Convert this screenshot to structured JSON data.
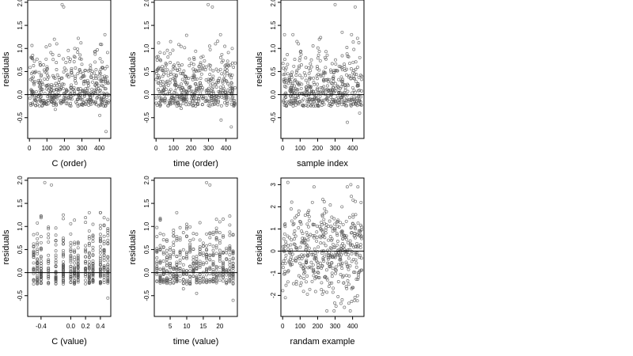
{
  "chart_data": [
    {
      "type": "scatter",
      "id": "c-order",
      "xlabel": "C (order)",
      "ylabel": "residuals",
      "xlim": [
        -10,
        465
      ],
      "ylim": [
        -0.95,
        2.05
      ],
      "xticks": [
        0,
        100,
        200,
        300,
        400
      ],
      "xtick_labels": [
        "0",
        "100",
        "200",
        "300",
        "400"
      ],
      "yticks": [
        -0.5,
        0.0,
        0.5,
        1.0,
        1.5,
        2.0
      ],
      "ytick_labels": [
        "-0.5",
        "0.0",
        "0.5",
        "1.0",
        "1.5",
        "2.0"
      ],
      "hline": 0,
      "n_points": 460,
      "x": [
        22,
        63,
        101,
        148,
        171,
        187,
        196,
        222,
        255,
        279,
        318,
        355,
        402,
        438
      ],
      "y": [
        0.38,
        -0.15,
        0.55,
        -0.32,
        0.22,
        1.95,
        1.9,
        0.8,
        0.15,
        1.22,
        -0.2,
        0.45,
        -0.45,
        -0.8
      ]
    },
    {
      "type": "scatter",
      "id": "time-order",
      "xlabel": "time (order)",
      "ylabel": "residuals",
      "xlim": [
        -10,
        465
      ],
      "ylim": [
        -0.95,
        2.05
      ],
      "xticks": [
        0,
        100,
        200,
        300,
        400
      ],
      "xtick_labels": [
        "0",
        "100",
        "200",
        "300",
        "400"
      ],
      "yticks": [
        -0.5,
        0.0,
        0.5,
        1.0,
        1.5,
        2.0
      ],
      "ytick_labels": [
        "-0.5",
        "0.0",
        "0.5",
        "1.0",
        "1.5",
        "2.0"
      ],
      "hline": 0,
      "n_points": 460,
      "x": [
        15,
        70,
        98,
        144,
        190,
        222,
        268,
        298,
        322,
        340,
        372,
        401,
        430
      ],
      "y": [
        1.12,
        0.2,
        0.35,
        -0.3,
        0.1,
        -0.2,
        0.55,
        1.95,
        1.9,
        1.1,
        -0.55,
        0.3,
        -0.7
      ]
    },
    {
      "type": "scatter",
      "id": "sample-index",
      "xlabel": "sample index",
      "ylabel": "residuals",
      "xlim": [
        -10,
        465
      ],
      "ylim": [
        -0.95,
        2.05
      ],
      "xticks": [
        0,
        100,
        200,
        300,
        400
      ],
      "xtick_labels": [
        "0",
        "100",
        "200",
        "300",
        "400"
      ],
      "yticks": [
        -0.5,
        0.0,
        0.5,
        1.0,
        1.5,
        2.0
      ],
      "ytick_labels": [
        "-0.5",
        "0.0",
        "0.5",
        "1.0",
        "1.5",
        "2.0"
      ],
      "hline": 0,
      "n_points": 460,
      "x": [
        30,
        82,
        120,
        165,
        210,
        248,
        290,
        300,
        340,
        370,
        415,
        440
      ],
      "y": [
        0.45,
        1.15,
        -0.25,
        0.6,
        1.2,
        -0.1,
        0.35,
        1.95,
        1.35,
        -0.6,
        1.9,
        -0.4
      ]
    },
    {
      "type": "scatter",
      "id": "c-value",
      "xlabel": "C (value)",
      "ylabel": "residuals",
      "xlim": [
        -0.58,
        0.54
      ],
      "ylim": [
        -0.95,
        2.05
      ],
      "xticks": [
        -0.4,
        0.0,
        0.2,
        0.4
      ],
      "xtick_labels": [
        "-0.4",
        "0.0",
        "0.2",
        "0.4"
      ],
      "yticks": [
        -0.5,
        0.0,
        0.5,
        1.0,
        1.5,
        2.0
      ],
      "ytick_labels": [
        "-0.5",
        "0.0",
        "0.5",
        "1.0",
        "1.5",
        "2.0"
      ],
      "hline": 0,
      "n_points": 460,
      "column_x": [
        -0.5,
        -0.45,
        -0.4,
        -0.3,
        -0.2,
        -0.1,
        0.0,
        0.05,
        0.1,
        0.2,
        0.25,
        0.3,
        0.4,
        0.45,
        0.5
      ],
      "x": [
        -0.35,
        -0.26,
        -0.5,
        -0.1,
        0.1,
        0.2,
        0.4,
        0.5
      ],
      "y": [
        1.95,
        1.9,
        0.4,
        1.25,
        0.2,
        0.1,
        1.3,
        -0.55
      ]
    },
    {
      "type": "scatter",
      "id": "time-value",
      "xlabel": "time (value)",
      "ylabel": "residuals",
      "xlim": [
        0.2,
        25.3
      ],
      "ylim": [
        -0.95,
        2.05
      ],
      "xticks": [
        5,
        10,
        15,
        20
      ],
      "xtick_labels": [
        "5",
        "10",
        "15",
        "20"
      ],
      "yticks": [
        -0.5,
        0.0,
        0.5,
        1.0,
        1.5,
        2.0
      ],
      "ytick_labels": [
        "-0.5",
        "0.0",
        "0.5",
        "1.0",
        "1.5",
        "2.0"
      ],
      "hline": 0,
      "n_points": 460,
      "x": [
        2,
        5,
        7,
        9,
        12,
        13,
        16,
        17,
        20,
        22,
        24
      ],
      "y": [
        1.15,
        0.2,
        0.35,
        -0.35,
        0.1,
        -0.45,
        1.95,
        1.9,
        1.1,
        0.3,
        -0.6
      ]
    },
    {
      "type": "scatter",
      "id": "random-example",
      "xlabel": "randam example",
      "ylabel": "residuals",
      "xlim": [
        -10,
        465
      ],
      "ylim": [
        -2.95,
        3.3
      ],
      "xticks": [
        0,
        100,
        200,
        300,
        400
      ],
      "xtick_labels": [
        "0",
        "100",
        "200",
        "300",
        "400"
      ],
      "yticks": [
        -2,
        -1,
        0,
        1,
        2,
        3
      ],
      "ytick_labels": [
        "-2",
        "-1",
        "0",
        "1",
        "2",
        "3"
      ],
      "hline": 0,
      "n_points": 460,
      "x": [
        30,
        70,
        120,
        170,
        210,
        230,
        260,
        300,
        340,
        390,
        430
      ],
      "y": [
        3.1,
        1.5,
        -0.8,
        2.2,
        -1.2,
        0.7,
        -0.3,
        1.0,
        -2.2,
        3.0,
        2.9
      ]
    }
  ]
}
